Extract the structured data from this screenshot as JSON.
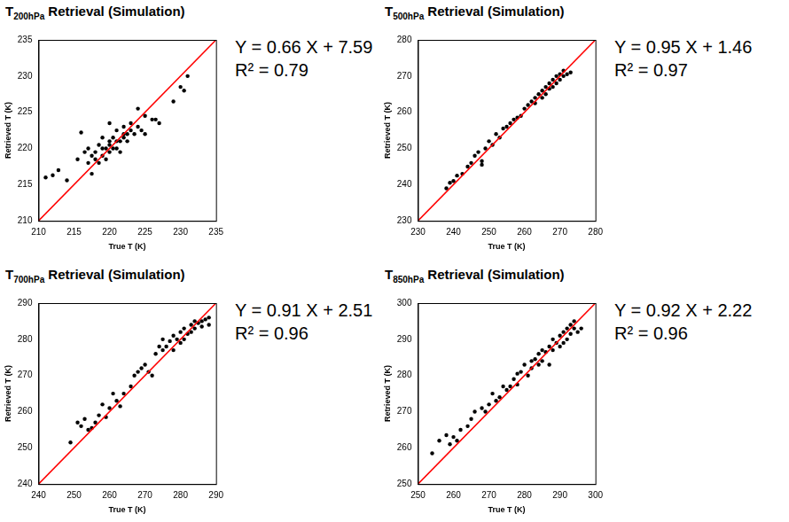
{
  "chart_data": [
    {
      "type": "scatter",
      "title": {
        "symbol": "T",
        "subscript": "200hPa",
        "text": "Retrieval (Simulation)"
      },
      "x_label": "True T (K)",
      "y_label": "Retrieved T (K)",
      "annotations": [
        "Y = 0.66 X + 7.59",
        "R² = 0.79"
      ],
      "xlim": [
        210,
        235
      ],
      "xticks": [
        210,
        215,
        220,
        225,
        230,
        235
      ],
      "ylim": [
        210,
        235
      ],
      "yticks": [
        210,
        215,
        220,
        225,
        230,
        235
      ],
      "grid": false,
      "series": [
        {
          "type": "scatter",
          "color": "#000000",
          "marker": "circle",
          "x": [
            211,
            212,
            212.8,
            214,
            215.5,
            216,
            216.5,
            217,
            217,
            217.5,
            217.5,
            218,
            218,
            218.5,
            218.5,
            219,
            219,
            219,
            219.5,
            219.5,
            220,
            220,
            220,
            220,
            220.5,
            220.5,
            221,
            221,
            221,
            221.5,
            221.5,
            222,
            222,
            222,
            222.5,
            222.5,
            223,
            223,
            223.5,
            224,
            224,
            224.5,
            225,
            225,
            226,
            226.5,
            227,
            229,
            230,
            231,
            230.5
          ],
          "values": [
            216,
            216.3,
            217,
            215.6,
            218.5,
            222.2,
            219.5,
            218,
            220,
            216.5,
            219,
            218.5,
            219.5,
            220.5,
            218,
            219,
            220,
            221.5,
            218.5,
            220,
            219.5,
            220.5,
            221,
            223.5,
            220,
            221.5,
            220,
            221,
            222.5,
            221,
            219.5,
            221.5,
            222,
            223,
            222,
            221,
            222.5,
            223.5,
            222,
            223,
            225.5,
            222.5,
            222,
            224.5,
            224,
            224,
            223.5,
            226.5,
            228.5,
            230,
            228
          ]
        },
        {
          "type": "line",
          "color": "#ff0000",
          "line_style": "solid",
          "x": [
            210,
            235
          ],
          "values": [
            210,
            235
          ]
        }
      ]
    },
    {
      "type": "scatter",
      "title": {
        "symbol": "T",
        "subscript": "500hPa",
        "text": "Retrieval (Simulation)"
      },
      "x_label": "True T (K)",
      "y_label": "Retrieved T (K)",
      "annotations": [
        "Y = 0.95 X + 1.46",
        "R² = 0.97"
      ],
      "xlim": [
        230,
        280
      ],
      "xticks": [
        230,
        240,
        250,
        260,
        270,
        280
      ],
      "ylim": [
        230,
        280
      ],
      "yticks": [
        230,
        240,
        250,
        260,
        270,
        280
      ],
      "grid": false,
      "series": [
        {
          "type": "scatter",
          "color": "#000000",
          "marker": "circle",
          "x": [
            238,
            239,
            240,
            241,
            242.5,
            244,
            245,
            246,
            247,
            248,
            248,
            249,
            250,
            251,
            252,
            253,
            254,
            255,
            256,
            257,
            258,
            259,
            260,
            261,
            262,
            263,
            263,
            264,
            265,
            265,
            266,
            266,
            267,
            267,
            268,
            268,
            269,
            269,
            270,
            270,
            271,
            271,
            272,
            273
          ],
          "values": [
            239,
            240.5,
            241,
            242.5,
            243,
            245,
            246,
            248,
            249,
            246.5,
            245.5,
            250,
            252,
            251,
            254,
            253,
            255.5,
            256,
            257,
            258,
            258.5,
            259,
            261,
            262,
            263,
            262.5,
            264,
            265,
            264,
            266,
            267,
            265,
            268,
            266.5,
            269,
            267,
            270,
            268,
            270.5,
            269,
            270,
            271.5,
            270.5,
            271
          ]
        },
        {
          "type": "line",
          "color": "#ff0000",
          "line_style": "solid",
          "x": [
            230,
            280
          ],
          "values": [
            230,
            280
          ]
        }
      ]
    },
    {
      "type": "scatter",
      "title": {
        "symbol": "T",
        "subscript": "700hPa",
        "text": "Retrieval (Simulation)"
      },
      "x_label": "True T (K)",
      "y_label": "Retrieved T (K)",
      "annotations": [
        "Y = 0.91 X + 2.51",
        "R² = 0.96"
      ],
      "xlim": [
        240,
        290
      ],
      "xticks": [
        240,
        250,
        260,
        270,
        280,
        290
      ],
      "ylim": [
        240,
        290
      ],
      "yticks": [
        240,
        250,
        260,
        270,
        280,
        290
      ],
      "grid": false,
      "series": [
        {
          "type": "scatter",
          "color": "#000000",
          "marker": "circle",
          "x": [
            249,
            251,
            252,
            253,
            254,
            255,
            256,
            257,
            258,
            259,
            260,
            261,
            262,
            263,
            264,
            266,
            267,
            268,
            269,
            270,
            271,
            272,
            273,
            274,
            275,
            275,
            276,
            277,
            278,
            278,
            279,
            280,
            280,
            281,
            281,
            282,
            283,
            283,
            284,
            284,
            285,
            286,
            286,
            287,
            288,
            288
          ],
          "values": [
            251.5,
            257,
            256,
            258,
            255,
            255.5,
            257,
            259,
            262,
            258.5,
            261,
            265,
            263,
            261.5,
            265,
            267,
            270,
            271,
            272,
            273,
            271,
            270,
            276,
            278,
            277,
            280,
            278,
            279.5,
            281,
            277,
            280,
            282,
            279,
            283,
            280,
            281.5,
            284,
            282,
            285,
            283,
            284.5,
            285,
            283.5,
            285.5,
            284,
            286
          ]
        },
        {
          "type": "line",
          "color": "#ff0000",
          "line_style": "solid",
          "x": [
            240,
            290
          ],
          "values": [
            240,
            290
          ]
        }
      ]
    },
    {
      "type": "scatter",
      "title": {
        "symbol": "T",
        "subscript": "850hPa",
        "text": "Retrieval (Simulation)"
      },
      "x_label": "True T (K)",
      "y_label": "Retrieved T (K)",
      "annotations": [
        "Y = 0.92 X + 2.22",
        "R² = 0.96"
      ],
      "xlim": [
        250,
        300
      ],
      "xticks": [
        250,
        260,
        270,
        280,
        290,
        300
      ],
      "ylim": [
        250,
        300
      ],
      "yticks": [
        250,
        260,
        270,
        280,
        290,
        300
      ],
      "grid": false,
      "series": [
        {
          "type": "scatter",
          "color": "#000000",
          "marker": "circle",
          "x": [
            254,
            256,
            258,
            259,
            260,
            261,
            262,
            264,
            265,
            266,
            268,
            269,
            270,
            271,
            272,
            273,
            274,
            275,
            276,
            277,
            278,
            278,
            279,
            280,
            281,
            282,
            282,
            283,
            284,
            284,
            285,
            285,
            286,
            287,
            287,
            288,
            288,
            289,
            290,
            290,
            291,
            291,
            292,
            292,
            293,
            293,
            294,
            294,
            295,
            296
          ],
          "values": [
            258.5,
            262,
            263.5,
            261,
            263,
            262,
            265,
            266,
            268,
            270,
            271,
            270,
            272,
            275,
            273,
            274,
            277,
            276,
            277,
            279,
            277.5,
            280.5,
            281,
            283,
            280,
            284,
            282,
            284.5,
            283,
            286,
            287,
            284,
            286.5,
            288,
            283,
            290,
            287,
            289,
            291,
            288,
            292,
            289,
            293,
            290,
            294,
            291.5,
            293,
            295,
            292,
            293
          ]
        },
        {
          "type": "line",
          "color": "#ff0000",
          "line_style": "solid",
          "x": [
            250,
            300
          ],
          "values": [
            250,
            300
          ]
        }
      ]
    }
  ]
}
